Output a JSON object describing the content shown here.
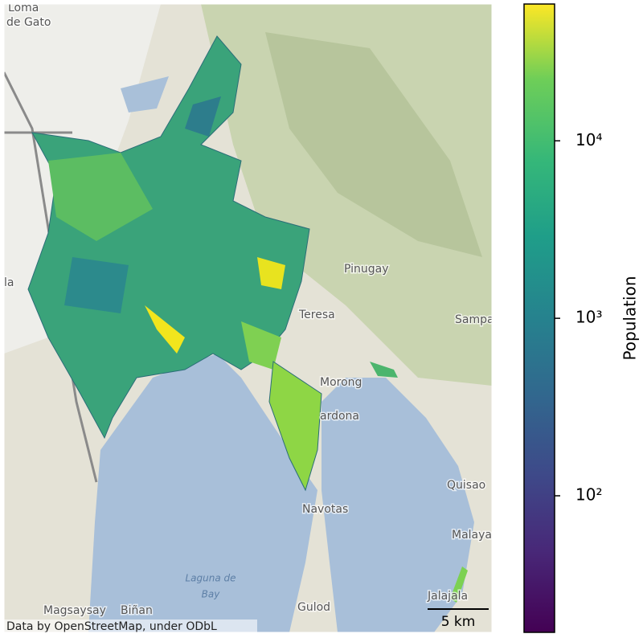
{
  "map": {
    "places": [
      "Loma",
      "de Gato",
      "Pinugay",
      "Teresa",
      "Sampa",
      "Morong",
      "ardona",
      "Quisao",
      "Malaya",
      "Navotas",
      "Gulod",
      "Jalajala",
      "Magsaysay",
      "Biñan",
      "la"
    ],
    "lake_label": [
      "Laguna de",
      "Bay"
    ],
    "attribution": "Data by OpenStreetMap, under ODbL",
    "scale_bar": "5 km"
  },
  "colorbar": {
    "label": "Population",
    "scale": "log",
    "lim": [
      17,
      59000
    ],
    "ticks": [
      {
        "value": 100,
        "label": "10²"
      },
      {
        "value": 1000,
        "label": "10³"
      },
      {
        "value": 10000,
        "label": "10⁴"
      }
    ]
  }
}
